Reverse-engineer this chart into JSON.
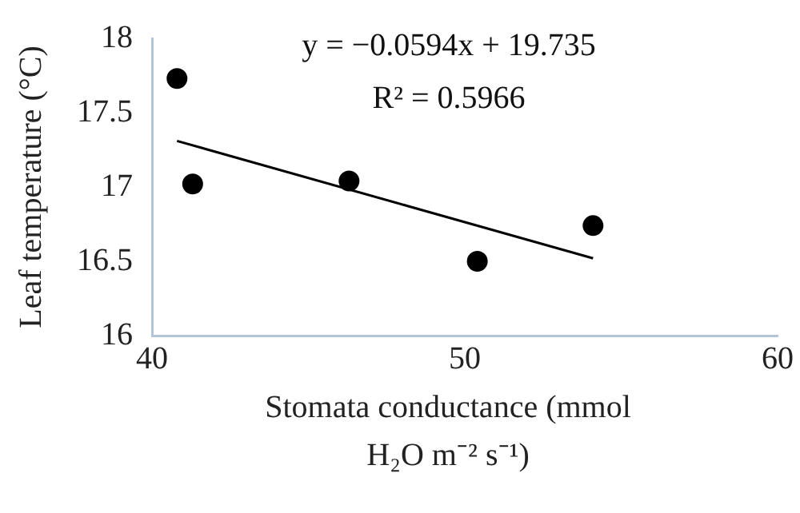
{
  "chart_data": {
    "type": "scatter",
    "xlabel": "Stomata conductance (mmol H₂O m⁻² s⁻¹)",
    "ylabel": "Leaf temperature (°C)",
    "xlim": [
      40,
      60
    ],
    "xticks": [
      40,
      50,
      60
    ],
    "ylim": [
      16,
      18
    ],
    "yticks": [
      16,
      16.5,
      17,
      17.5,
      18
    ],
    "grid": false,
    "legend": false,
    "series": [
      {
        "marker": "circle",
        "color": "#000000",
        "x": [
          40.8,
          41.3,
          46.3,
          50.4,
          54.1
        ],
        "values": [
          17.73,
          17.02,
          17.04,
          16.5,
          16.74
        ]
      },
      {
        "type": "line",
        "marker": "none",
        "color": "#000000",
        "x": [
          40.8,
          54.1
        ],
        "values": [
          17.31,
          16.52
        ]
      }
    ],
    "annotations": [
      "y = −0.0594x + 19.735",
      "R² = 0.5966"
    ]
  }
}
